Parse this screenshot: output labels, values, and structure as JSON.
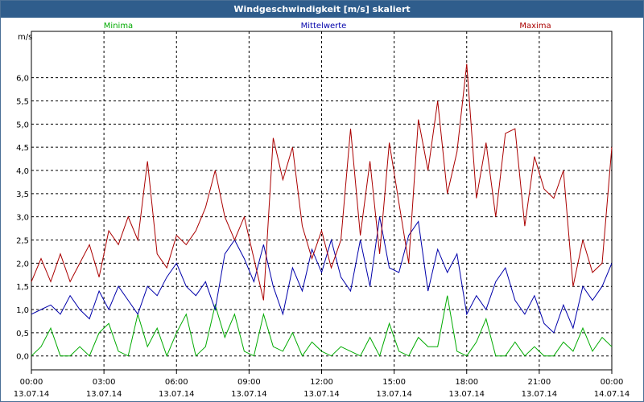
{
  "window": {
    "title": "Windgeschwindigkeit [m/s] skaliert"
  },
  "chart_data": {
    "type": "line",
    "title": "Windgeschwindigkeit [m/s] skaliert",
    "ylabel": "m/s",
    "ylim": [
      -0.3,
      7.0
    ],
    "yticks": [
      "0,0",
      "0,5",
      "1,0",
      "1,5",
      "2,0",
      "2,5",
      "3,0",
      "3,5",
      "4,0",
      "4,5",
      "5,0",
      "5,5",
      "6,0"
    ],
    "ytick_values": [
      0,
      0.5,
      1,
      1.5,
      2,
      2.5,
      3,
      3.5,
      4,
      4.5,
      5,
      5.5,
      6
    ],
    "xlim": [
      0,
      24
    ],
    "xticks": [
      {
        "h": 0,
        "time": "00:00",
        "date": "13.07.14"
      },
      {
        "h": 3,
        "time": "03:00",
        "date": "13.07.14"
      },
      {
        "h": 6,
        "time": "06:00",
        "date": "13.07.14"
      },
      {
        "h": 9,
        "time": "09:00",
        "date": "13.07.14"
      },
      {
        "h": 12,
        "time": "12:00",
        "date": "13.07.14"
      },
      {
        "h": 15,
        "time": "15:00",
        "date": "13.07.14"
      },
      {
        "h": 18,
        "time": "18:00",
        "date": "13.07.14"
      },
      {
        "h": 21,
        "time": "21:00",
        "date": "13.07.14"
      },
      {
        "h": 24,
        "time": "00:00",
        "date": "14.07.14"
      }
    ],
    "grid": true,
    "series": [
      {
        "name": "Minima",
        "color": "#00aa00",
        "x": [
          0,
          0.4,
          0.8,
          1.2,
          1.6,
          2.0,
          2.4,
          2.8,
          3.2,
          3.6,
          4.0,
          4.4,
          4.8,
          5.2,
          5.6,
          6.0,
          6.4,
          6.8,
          7.2,
          7.6,
          8.0,
          8.4,
          8.8,
          9.2,
          9.6,
          10.0,
          10.4,
          10.8,
          11.2,
          11.6,
          12.0,
          12.4,
          12.8,
          13.2,
          13.6,
          14.0,
          14.4,
          14.8,
          15.2,
          15.6,
          16.0,
          16.4,
          16.8,
          17.2,
          17.6,
          18.0,
          18.4,
          18.8,
          19.2,
          19.6,
          20.0,
          20.4,
          20.8,
          21.2,
          21.6,
          22.0,
          22.4,
          22.8,
          23.2,
          23.6,
          24.0
        ],
        "values": [
          0.0,
          0.2,
          0.6,
          0.0,
          0.0,
          0.2,
          0.0,
          0.5,
          0.7,
          0.1,
          0.0,
          0.9,
          0.2,
          0.6,
          0.0,
          0.5,
          0.9,
          0.0,
          0.2,
          1.1,
          0.4,
          0.9,
          0.1,
          0.0,
          0.9,
          0.2,
          0.1,
          0.5,
          0.0,
          0.3,
          0.1,
          0.0,
          0.2,
          0.1,
          0.0,
          0.4,
          0.0,
          0.7,
          0.1,
          0.0,
          0.4,
          0.2,
          0.2,
          1.3,
          0.1,
          0.0,
          0.3,
          0.8,
          0.0,
          0.0,
          0.3,
          0.0,
          0.2,
          0.0,
          0.0,
          0.3,
          0.1,
          0.6,
          0.1,
          0.4,
          0.2
        ]
      },
      {
        "name": "Mittelwerte",
        "color": "#0000aa",
        "x": [
          0,
          0.4,
          0.8,
          1.2,
          1.6,
          2.0,
          2.4,
          2.8,
          3.2,
          3.6,
          4.0,
          4.4,
          4.8,
          5.2,
          5.6,
          6.0,
          6.4,
          6.8,
          7.2,
          7.6,
          8.0,
          8.4,
          8.8,
          9.2,
          9.6,
          10.0,
          10.4,
          10.8,
          11.2,
          11.6,
          12.0,
          12.4,
          12.8,
          13.2,
          13.6,
          14.0,
          14.4,
          14.8,
          15.2,
          15.6,
          16.0,
          16.4,
          16.8,
          17.2,
          17.6,
          18.0,
          18.4,
          18.8,
          19.2,
          19.6,
          20.0,
          20.4,
          20.8,
          21.2,
          21.6,
          22.0,
          22.4,
          22.8,
          23.2,
          23.6,
          24.0
        ],
        "values": [
          0.9,
          1.0,
          1.1,
          0.9,
          1.3,
          1.0,
          0.8,
          1.4,
          1.0,
          1.5,
          1.2,
          0.9,
          1.5,
          1.3,
          1.7,
          2.0,
          1.5,
          1.3,
          1.6,
          1.0,
          2.2,
          2.5,
          2.1,
          1.6,
          2.4,
          1.5,
          0.9,
          1.9,
          1.4,
          2.3,
          1.8,
          2.5,
          1.7,
          1.4,
          2.5,
          1.5,
          3.0,
          1.9,
          1.8,
          2.6,
          2.9,
          1.4,
          2.3,
          1.8,
          2.2,
          0.9,
          1.3,
          1.0,
          1.6,
          1.9,
          1.2,
          0.9,
          1.3,
          0.7,
          0.5,
          1.1,
          0.6,
          1.5,
          1.2,
          1.5,
          2.0
        ]
      },
      {
        "name": "Maxima",
        "color": "#aa0000",
        "x": [
          0,
          0.4,
          0.8,
          1.2,
          1.6,
          2.0,
          2.4,
          2.8,
          3.2,
          3.6,
          4.0,
          4.4,
          4.8,
          5.2,
          5.6,
          6.0,
          6.4,
          6.8,
          7.2,
          7.6,
          8.0,
          8.4,
          8.8,
          9.2,
          9.6,
          10.0,
          10.4,
          10.8,
          11.2,
          11.6,
          12.0,
          12.4,
          12.8,
          13.2,
          13.6,
          14.0,
          14.4,
          14.8,
          15.2,
          15.6,
          16.0,
          16.4,
          16.8,
          17.2,
          17.6,
          18.0,
          18.4,
          18.8,
          19.2,
          19.6,
          20.0,
          20.4,
          20.8,
          21.2,
          21.6,
          22.0,
          22.4,
          22.8,
          23.2,
          23.6,
          24.0
        ],
        "values": [
          1.6,
          2.1,
          1.6,
          2.2,
          1.6,
          2.0,
          2.4,
          1.7,
          2.7,
          2.4,
          3.0,
          2.5,
          4.2,
          2.2,
          1.9,
          2.6,
          2.4,
          2.7,
          3.2,
          4.0,
          3.0,
          2.5,
          3.0,
          2.1,
          1.2,
          4.7,
          3.8,
          4.5,
          2.8,
          2.1,
          2.7,
          1.9,
          2.5,
          4.9,
          2.6,
          4.2,
          2.2,
          4.6,
          3.3,
          2.0,
          5.1,
          4.0,
          5.5,
          3.5,
          4.4,
          6.3,
          3.4,
          4.6,
          3.0,
          4.8,
          4.9,
          2.8,
          4.3,
          3.6,
          3.4,
          4.0,
          1.5,
          2.5,
          1.8,
          2.0,
          4.5
        ]
      }
    ]
  }
}
